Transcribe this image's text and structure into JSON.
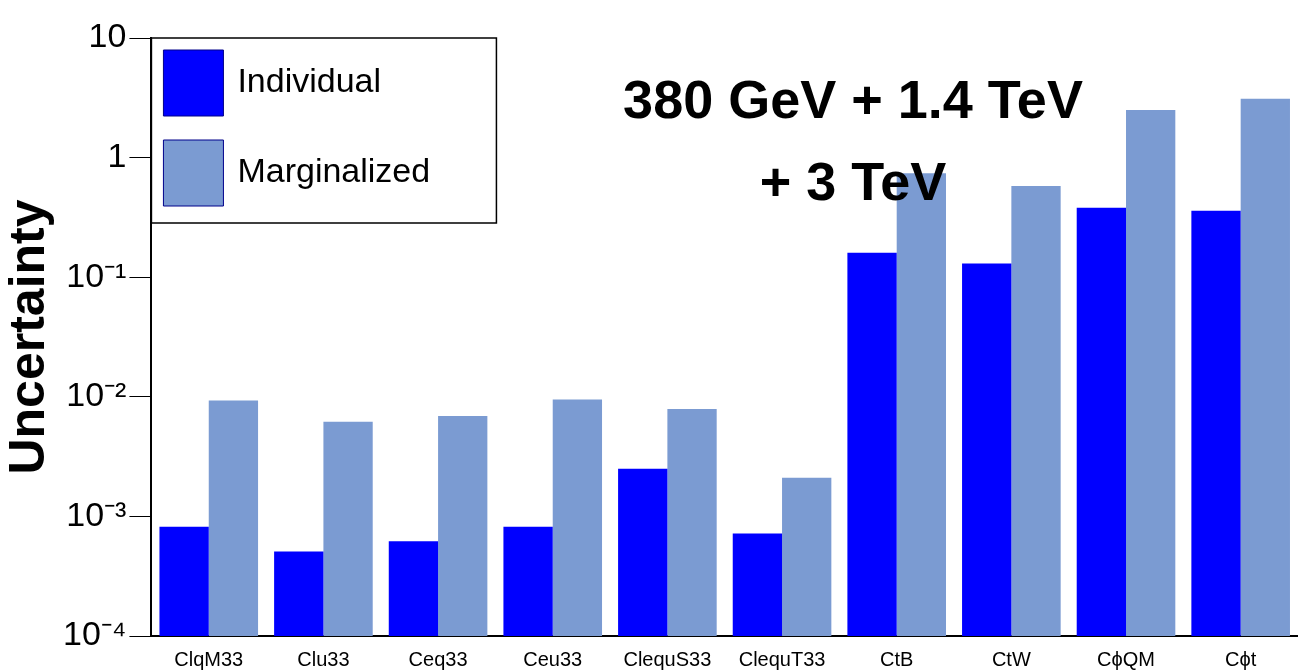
{
  "chart_data": {
    "type": "bar",
    "ylabel": "Uncertainty",
    "categories": [
      "ClqM33",
      "Clu33",
      "Ceq33",
      "Ceu33",
      "ClequS33",
      "ClequT33",
      "CtB",
      "CtW",
      "CϕQM",
      "Cϕt"
    ],
    "series": [
      {
        "name": "Individual",
        "color": "#0000ff",
        "values": [
          0.00082,
          0.00051,
          0.00062,
          0.00082,
          0.0025,
          0.00072,
          0.16,
          0.13,
          0.38,
          0.36
        ]
      },
      {
        "name": "Marginalized",
        "color": "#7b9bd2",
        "values": [
          0.0093,
          0.0062,
          0.0069,
          0.0095,
          0.0079,
          0.0021,
          0.74,
          0.58,
          2.5,
          3.1
        ]
      }
    ],
    "log": true,
    "ylim": [
      0.0001,
      10
    ],
    "yticks": [
      {
        "value": 0.0001,
        "label": "10⁻⁴"
      },
      {
        "value": 0.001,
        "label": "10⁻³"
      },
      {
        "value": 0.01,
        "label": "10⁻²"
      },
      {
        "value": 0.1,
        "label": "10⁻¹"
      },
      1,
      10
    ],
    "annotations": [
      "380 GeV + 1.4 TeV\n+ 3 TeV"
    ],
    "legend": "top left",
    "grid": false
  }
}
